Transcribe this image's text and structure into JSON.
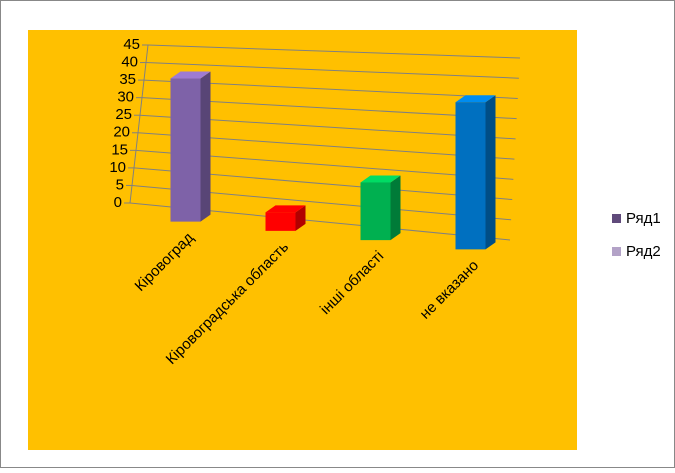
{
  "chart_data": {
    "type": "bar3d",
    "categories": [
      "Кіровоград",
      "Кіровоградська область",
      "інші області",
      "не вказано"
    ],
    "series": [
      {
        "name": "Ряд1",
        "color": "#604a7b",
        "point_colors": [
          "#7e62a8",
          "#ff0000",
          "#00b050",
          "#0070c0"
        ],
        "values": [
          40,
          5,
          15,
          37
        ]
      },
      {
        "name": "Ряд2",
        "color": "#b3a2c7",
        "values": [
          null,
          null,
          null,
          null
        ]
      }
    ],
    "ylim": [
      0,
      45
    ],
    "yticks": [
      0,
      5,
      10,
      15,
      20,
      25,
      30,
      35,
      40,
      45
    ],
    "grid": true,
    "legend": "right",
    "background": "#ffc000"
  }
}
